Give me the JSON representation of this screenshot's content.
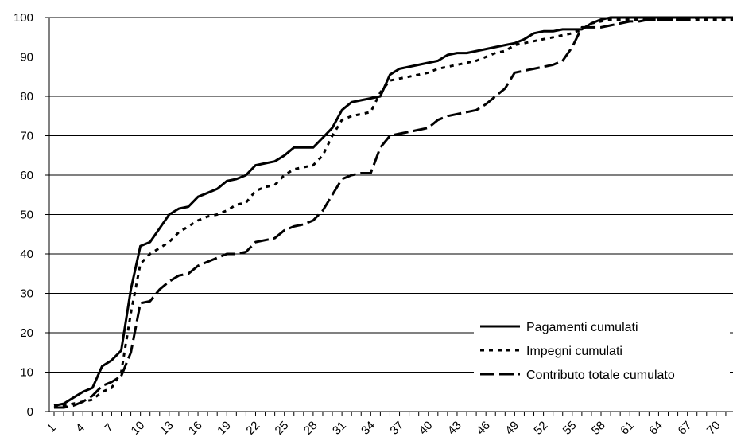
{
  "chart_data": {
    "type": "line",
    "title": "",
    "xlabel": "",
    "ylabel": "",
    "ylim": [
      0,
      100
    ],
    "yticks": [
      0,
      10,
      20,
      30,
      40,
      50,
      60,
      70,
      80,
      90,
      100
    ],
    "xlim": [
      1,
      72
    ],
    "xticks": [
      1,
      4,
      7,
      10,
      13,
      16,
      19,
      22,
      25,
      28,
      31,
      34,
      37,
      40,
      43,
      46,
      49,
      52,
      55,
      58,
      61,
      64,
      67,
      70
    ],
    "grid": "horizontal",
    "legend_position": "bottom-right",
    "x": [
      1,
      2,
      3,
      4,
      5,
      6,
      7,
      8,
      9,
      10,
      11,
      12,
      13,
      14,
      15,
      16,
      17,
      18,
      19,
      20,
      21,
      22,
      23,
      24,
      25,
      26,
      27,
      28,
      29,
      30,
      31,
      32,
      33,
      34,
      35,
      36,
      37,
      38,
      39,
      40,
      41,
      42,
      43,
      44,
      45,
      46,
      47,
      48,
      49,
      50,
      51,
      52,
      53,
      54,
      55,
      56,
      57,
      58,
      59,
      60,
      61,
      62,
      63,
      64,
      65,
      66,
      67,
      68,
      69,
      70,
      71,
      72
    ],
    "series": [
      {
        "name": "Pagamenti cumulati",
        "style": "solid",
        "values": [
          1.5,
          2,
          3.5,
          5,
          6,
          11.5,
          13,
          15.5,
          31,
          42,
          43,
          46.5,
          50,
          51.5,
          52,
          54.5,
          55.5,
          56.5,
          58.5,
          59,
          60,
          62.5,
          63,
          63.5,
          65,
          67,
          67,
          67,
          69.5,
          72,
          76.5,
          78.5,
          79,
          79.5,
          80,
          85.5,
          87,
          87.5,
          88,
          88.5,
          89,
          90.5,
          91,
          91,
          91.5,
          92,
          92.5,
          93,
          93.5,
          94.5,
          96,
          96.5,
          96.5,
          97,
          97,
          97,
          98.5,
          99.5,
          100,
          100,
          100,
          100,
          100,
          100,
          100,
          100,
          100,
          100,
          100,
          100,
          100,
          100
        ]
      },
      {
        "name": "Impegni cumulati",
        "style": "dashed",
        "values": [
          1,
          1.5,
          2,
          2.5,
          3,
          5,
          6,
          10,
          25,
          37.5,
          40,
          41.5,
          43,
          45.5,
          47,
          48.5,
          49.5,
          50,
          51,
          52.5,
          53,
          56,
          57,
          57.5,
          60,
          61.5,
          62,
          62.5,
          65,
          70,
          74,
          75,
          75.5,
          76,
          81,
          84,
          84.5,
          85,
          85.5,
          86,
          87,
          87.5,
          88,
          88.5,
          89,
          90,
          91,
          91.5,
          93,
          93.5,
          94,
          94.5,
          95,
          95.5,
          96,
          97,
          98.5,
          99,
          99.5,
          99.5,
          99.5,
          99.5,
          99.5,
          99.5,
          99.5,
          99.5,
          99.5,
          99.5,
          99.5,
          99.5,
          99.5,
          99.5
        ]
      },
      {
        "name": "Contributo totale cumulato",
        "style": "longdash",
        "values": [
          1,
          1,
          1.5,
          2.5,
          4,
          6.5,
          7.5,
          9,
          15,
          27.5,
          28,
          31,
          33,
          34.5,
          35,
          37,
          38,
          39,
          40,
          40,
          40.5,
          43,
          43.5,
          44,
          46,
          47,
          47.5,
          48.5,
          51,
          55,
          59,
          60,
          60.5,
          60.5,
          67,
          70,
          70.5,
          71,
          71.5,
          72,
          74,
          75,
          75.5,
          76,
          76.5,
          78,
          80,
          82,
          86,
          86.5,
          87,
          87.5,
          88,
          89,
          92.5,
          97.5,
          97.5,
          97.5,
          98,
          98.5,
          99,
          99,
          99.5,
          99.5,
          99.5,
          99.5,
          99.5,
          100,
          100,
          100,
          100,
          100
        ]
      }
    ]
  }
}
